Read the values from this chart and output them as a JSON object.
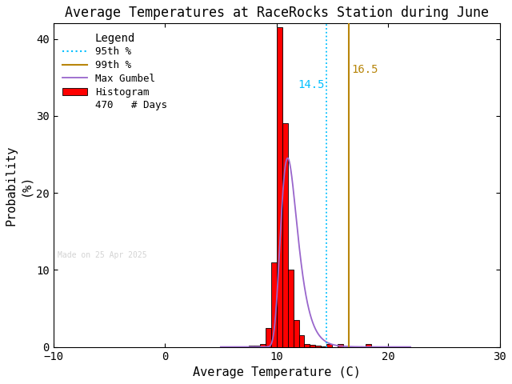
{
  "title": "Average Temperatures at RaceRocks Station during June",
  "xlabel": "Average Temperature (C)",
  "ylabel1": "Probability",
  "ylabel2": "(%)",
  "xlim": [
    -10,
    30
  ],
  "ylim": [
    0,
    42
  ],
  "xticks": [
    -10,
    0,
    10,
    20,
    30
  ],
  "yticks": [
    0,
    10,
    20,
    30,
    40
  ],
  "bar_edges": [
    7.5,
    8.0,
    8.5,
    9.0,
    9.5,
    10.0,
    10.5,
    11.0,
    11.5,
    12.0,
    12.5,
    13.0,
    13.5,
    14.0,
    14.5,
    15.5,
    18.0
  ],
  "bar_heights": [
    0.15,
    0.15,
    0.4,
    2.5,
    11.0,
    41.5,
    29.0,
    10.0,
    3.5,
    1.5,
    0.4,
    0.3,
    0.2,
    0.1,
    0.4,
    0.4,
    0.4
  ],
  "bar_width": 0.5,
  "bar_color": "#ff0000",
  "bar_edgecolor": "#000000",
  "gumbel_color": "#9966cc",
  "pct95_color": "#00bfff",
  "pct99_color": "#b8860b",
  "pct95_value": 14.5,
  "pct99_value": 16.5,
  "pct95_label": "14.5",
  "pct99_label": "16.5",
  "num_days": 470,
  "watermark": "Made on 25 Apr 2025",
  "background_color": "#ffffff",
  "title_fontsize": 12,
  "axis_fontsize": 11,
  "tick_fontsize": 10,
  "legend_title": "Legend",
  "gumbel_mu": 11.0,
  "gumbel_beta": 0.75
}
